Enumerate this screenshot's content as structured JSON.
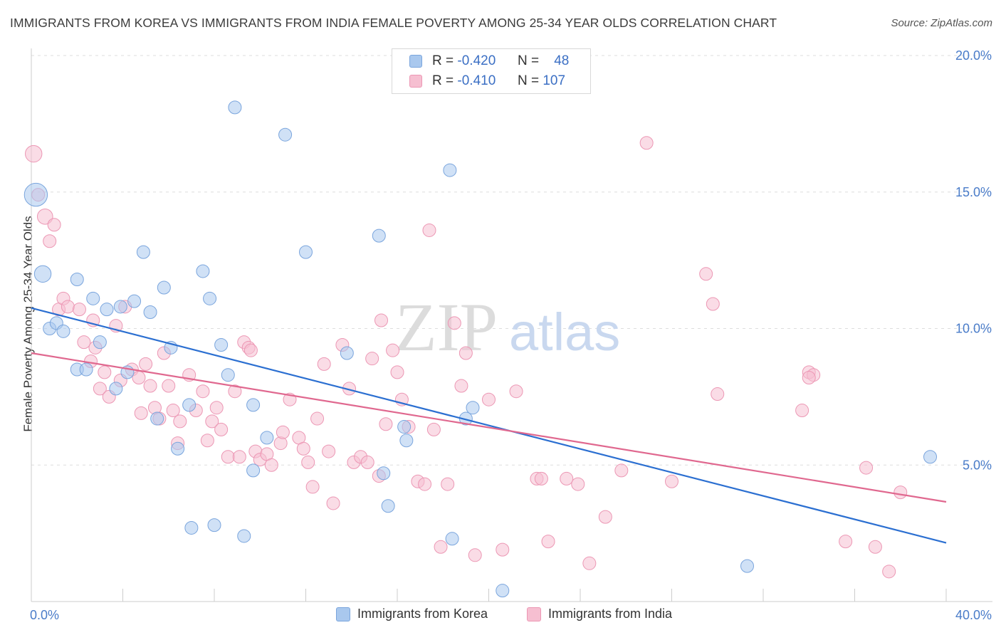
{
  "title": "IMMIGRANTS FROM KOREA VS IMMIGRANTS FROM INDIA FEMALE POVERTY AMONG 25-34 YEAR OLDS CORRELATION CHART",
  "source": "Source: ZipAtlas.com",
  "watermark": {
    "zip": "ZIP",
    "atlas": "atlas"
  },
  "colors": {
    "korea_fill": "#a9c8ee",
    "korea_stroke": "#7aa5dd",
    "korea_line": "#2b6fd1",
    "india_fill": "#f6bfd1",
    "india_stroke": "#ec97b4",
    "india_line": "#e0688f",
    "axis_label": "#4a7cc9",
    "grid": "#dddddd"
  },
  "legend": {
    "rows": [
      {
        "r_label": "R =",
        "r_value": "-0.420",
        "n_label": "N =",
        "n_value": "48"
      },
      {
        "r_label": "R =",
        "r_value": "-0.410",
        "n_label": "N =",
        "n_value": "107"
      }
    ]
  },
  "bottom_legend": [
    "Immigrants from Korea",
    "Immigrants from India"
  ],
  "chart_data": {
    "type": "scatter",
    "title": "IMMIGRANTS FROM KOREA VS IMMIGRANTS FROM INDIA FEMALE POVERTY AMONG 25-34 YEAR OLDS CORRELATION CHART",
    "xlabel": "",
    "ylabel": "Female Poverty Among 25-34 Year Olds",
    "xlim": [
      0,
      40
    ],
    "ylim": [
      0,
      20
    ],
    "x_tick_labels": [
      "0.0%",
      "40.0%"
    ],
    "y_ticks": [
      5,
      10,
      15,
      20
    ],
    "y_tick_labels": [
      "5.0%",
      "10.0%",
      "15.0%",
      "20.0%"
    ],
    "grid": true,
    "legend_position": "top-center",
    "series": [
      {
        "name": "Immigrants from Korea",
        "r": -0.42,
        "n": 48,
        "trend": {
          "x": [
            0,
            40
          ],
          "y": [
            10.75,
            2.15
          ]
        },
        "points": [
          [
            0.2,
            14.9,
            1.8
          ],
          [
            0.5,
            12.0,
            1.3
          ],
          [
            0.8,
            10.0,
            1
          ],
          [
            1.1,
            10.2,
            1
          ],
          [
            1.4,
            9.9,
            1
          ],
          [
            2.0,
            11.8,
            1
          ],
          [
            2.0,
            8.5,
            1
          ],
          [
            2.4,
            8.5,
            1
          ],
          [
            2.7,
            11.1,
            1
          ],
          [
            3.0,
            9.5,
            1
          ],
          [
            3.3,
            10.7,
            1
          ],
          [
            3.7,
            7.8,
            1
          ],
          [
            3.9,
            10.8,
            1
          ],
          [
            4.2,
            8.4,
            1
          ],
          [
            4.5,
            11.0,
            1
          ],
          [
            4.9,
            12.8,
            1
          ],
          [
            5.2,
            10.6,
            1
          ],
          [
            5.5,
            6.7,
            1
          ],
          [
            5.8,
            11.5,
            1
          ],
          [
            6.1,
            9.3,
            1
          ],
          [
            6.4,
            5.6,
            1
          ],
          [
            6.9,
            7.2,
            1
          ],
          [
            7.0,
            2.7,
            1
          ],
          [
            7.5,
            12.1,
            1
          ],
          [
            7.8,
            11.1,
            1
          ],
          [
            8.0,
            2.8,
            1
          ],
          [
            8.3,
            9.4,
            1
          ],
          [
            8.6,
            8.3,
            1
          ],
          [
            8.9,
            18.1,
            1
          ],
          [
            9.3,
            2.4,
            1
          ],
          [
            9.7,
            7.2,
            1
          ],
          [
            9.7,
            4.8,
            1
          ],
          [
            10.3,
            6.0,
            1
          ],
          [
            11.1,
            17.1,
            1
          ],
          [
            12.0,
            12.8,
            1
          ],
          [
            13.8,
            9.1,
            1
          ],
          [
            15.2,
            13.4,
            1
          ],
          [
            15.4,
            4.7,
            1
          ],
          [
            15.6,
            3.5,
            1
          ],
          [
            16.3,
            6.4,
            1
          ],
          [
            16.4,
            5.9,
            1
          ],
          [
            18.3,
            15.8,
            1
          ],
          [
            18.4,
            2.3,
            1
          ],
          [
            19.0,
            6.7,
            1
          ],
          [
            19.3,
            7.1,
            1
          ],
          [
            20.6,
            0.4,
            1
          ],
          [
            31.3,
            1.3,
            1
          ],
          [
            39.3,
            5.3,
            1
          ]
        ]
      },
      {
        "name": "Immigrants from India",
        "r": -0.41,
        "n": 107,
        "trend": {
          "x": [
            0,
            40
          ],
          "y": [
            9.1,
            3.65
          ]
        },
        "points": [
          [
            0.1,
            16.4,
            1.3
          ],
          [
            0.3,
            14.9,
            1
          ],
          [
            0.6,
            14.1,
            1.2
          ],
          [
            0.8,
            13.2,
            1
          ],
          [
            1.0,
            13.8,
            1
          ],
          [
            1.2,
            10.7,
            1
          ],
          [
            1.4,
            11.1,
            1
          ],
          [
            1.6,
            10.8,
            1
          ],
          [
            2.1,
            10.7,
            1
          ],
          [
            2.3,
            9.5,
            1
          ],
          [
            2.6,
            8.8,
            1
          ],
          [
            2.7,
            10.3,
            1
          ],
          [
            2.8,
            9.3,
            1
          ],
          [
            3.0,
            7.8,
            1
          ],
          [
            3.2,
            8.4,
            1
          ],
          [
            3.4,
            7.5,
            1
          ],
          [
            3.7,
            10.1,
            1
          ],
          [
            3.9,
            8.1,
            1
          ],
          [
            4.1,
            10.8,
            1
          ],
          [
            4.4,
            8.5,
            1
          ],
          [
            4.7,
            8.2,
            1
          ],
          [
            4.8,
            6.9,
            1
          ],
          [
            5.0,
            8.7,
            1
          ],
          [
            5.2,
            7.9,
            1
          ],
          [
            5.4,
            7.1,
            1
          ],
          [
            5.6,
            6.7,
            1
          ],
          [
            5.8,
            9.1,
            1
          ],
          [
            6.0,
            7.9,
            1
          ],
          [
            6.2,
            7.0,
            1
          ],
          [
            6.4,
            5.8,
            1
          ],
          [
            6.5,
            6.6,
            1
          ],
          [
            6.9,
            8.3,
            1
          ],
          [
            7.2,
            7.0,
            1
          ],
          [
            7.5,
            7.7,
            1
          ],
          [
            7.7,
            5.9,
            1
          ],
          [
            7.9,
            6.6,
            1
          ],
          [
            8.1,
            7.1,
            1
          ],
          [
            8.3,
            6.3,
            1
          ],
          [
            8.6,
            5.3,
            1
          ],
          [
            8.9,
            7.7,
            1
          ],
          [
            9.1,
            5.3,
            1
          ],
          [
            9.3,
            9.5,
            1
          ],
          [
            9.5,
            9.3,
            1
          ],
          [
            9.6,
            9.2,
            1
          ],
          [
            9.8,
            5.5,
            1
          ],
          [
            10.0,
            5.2,
            1
          ],
          [
            10.3,
            5.4,
            1
          ],
          [
            10.5,
            5.0,
            1
          ],
          [
            10.9,
            5.8,
            1
          ],
          [
            11.0,
            6.2,
            1
          ],
          [
            11.3,
            7.4,
            1
          ],
          [
            11.7,
            6.0,
            1
          ],
          [
            11.9,
            5.6,
            1
          ],
          [
            12.1,
            5.1,
            1
          ],
          [
            12.3,
            4.2,
            1
          ],
          [
            12.5,
            6.7,
            1
          ],
          [
            12.8,
            8.7,
            1
          ],
          [
            13.0,
            5.5,
            1
          ],
          [
            13.2,
            3.6,
            1
          ],
          [
            13.6,
            9.4,
            1
          ],
          [
            13.9,
            7.8,
            1
          ],
          [
            14.1,
            5.1,
            1
          ],
          [
            14.4,
            5.3,
            1
          ],
          [
            14.7,
            5.1,
            1
          ],
          [
            14.9,
            8.9,
            1
          ],
          [
            15.2,
            4.6,
            1
          ],
          [
            15.3,
            10.3,
            1
          ],
          [
            15.5,
            6.5,
            1
          ],
          [
            15.8,
            9.2,
            1
          ],
          [
            16.0,
            8.4,
            1
          ],
          [
            16.2,
            7.4,
            1
          ],
          [
            16.5,
            6.4,
            1
          ],
          [
            16.9,
            4.4,
            1
          ],
          [
            17.2,
            4.3,
            1
          ],
          [
            17.4,
            13.6,
            1
          ],
          [
            17.6,
            6.3,
            1
          ],
          [
            17.9,
            2.0,
            1
          ],
          [
            18.2,
            4.3,
            1
          ],
          [
            18.5,
            10.2,
            1
          ],
          [
            18.8,
            7.9,
            1
          ],
          [
            19.0,
            9.1,
            1
          ],
          [
            19.4,
            1.7,
            1
          ],
          [
            20.0,
            7.4,
            1
          ],
          [
            20.6,
            1.9,
            1
          ],
          [
            21.2,
            7.7,
            1
          ],
          [
            22.1,
            4.5,
            1
          ],
          [
            22.3,
            4.5,
            1
          ],
          [
            22.6,
            2.2,
            1
          ],
          [
            23.4,
            4.5,
            1
          ],
          [
            23.9,
            4.3,
            1
          ],
          [
            24.4,
            1.4,
            1
          ],
          [
            25.1,
            3.1,
            1
          ],
          [
            25.8,
            4.8,
            1
          ],
          [
            26.9,
            16.8,
            1
          ],
          [
            28.0,
            4.4,
            1
          ],
          [
            29.5,
            12.0,
            1
          ],
          [
            29.8,
            10.9,
            1
          ],
          [
            30.0,
            7.6,
            1
          ],
          [
            33.7,
            7.0,
            1
          ],
          [
            34.0,
            8.4,
            1
          ],
          [
            34.2,
            8.3,
            1
          ],
          [
            35.6,
            2.2,
            1
          ],
          [
            36.5,
            4.9,
            1
          ],
          [
            36.9,
            2.0,
            1
          ],
          [
            37.5,
            1.1,
            1
          ],
          [
            38.0,
            4.0,
            1
          ],
          [
            34.0,
            8.2,
            1
          ]
        ]
      }
    ]
  }
}
